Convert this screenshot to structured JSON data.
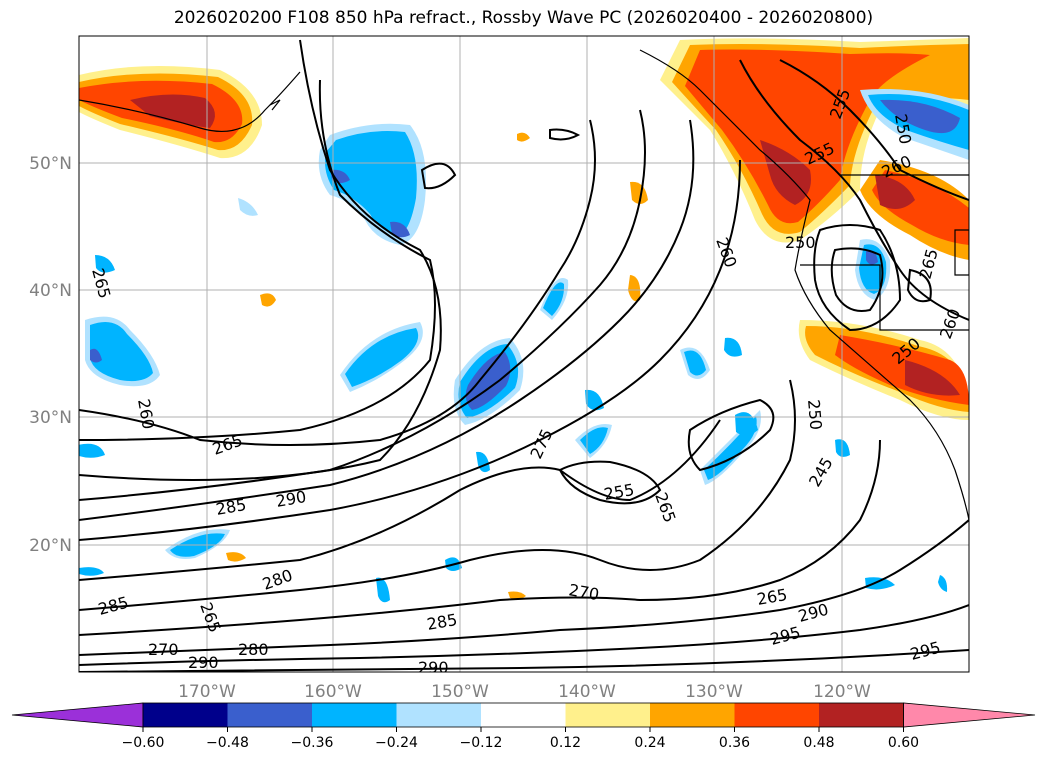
{
  "title": "2026020200 F108 850 hPa refract., Rossby Wave PC (2026020400 - 2026020800)",
  "lat_labels": [
    "50°N",
    "40°N",
    "30°N",
    "20°N"
  ],
  "lon_labels": [
    "170°W",
    "160°W",
    "150°W",
    "140°W",
    "130°W",
    "120°W"
  ],
  "colorbar": {
    "colors": [
      "#9b30d9",
      "#00008b",
      "#3a5fcd",
      "#00b4ff",
      "#b0e2ff",
      "#ffffff",
      "#fff08c",
      "#ffa500",
      "#ff4500",
      "#b22222",
      "#ff88aa"
    ],
    "tick_labels": [
      "−0.60",
      "−0.48",
      "−0.36",
      "−0.24",
      "−0.12",
      "0.12",
      "0.24",
      "0.36",
      "0.48",
      "0.60"
    ]
  },
  "contour_labels": [
    "265",
    "260",
    "265",
    "285",
    "290",
    "280",
    "285",
    "265",
    "270",
    "280",
    "290",
    "285",
    "290",
    "275",
    "255",
    "265",
    "270",
    "260",
    "250",
    "245",
    "265",
    "295",
    "290",
    "295",
    "255",
    "250",
    "260",
    "250",
    "265",
    "260",
    "255",
    "250"
  ]
}
